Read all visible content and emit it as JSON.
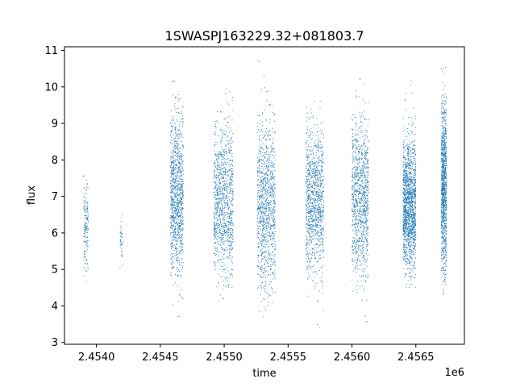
{
  "chart_data": {
    "type": "scatter",
    "title": "1SWASPJ163229.32+081803.7",
    "xlabel": "time",
    "ylabel": "flux",
    "x_offset_label": "1e6",
    "xlim": [
      2453750,
      2456880
    ],
    "ylim": [
      2.95,
      11.1
    ],
    "x_ticks": [
      2454000,
      2454500,
      2455000,
      2455500,
      2456000,
      2456500
    ],
    "x_tick_labels": [
      "2.4540",
      "2.4545",
      "2.4550",
      "2.4555",
      "2.4560",
      "2.4565"
    ],
    "y_ticks": [
      3,
      4,
      5,
      6,
      7,
      8,
      9,
      10,
      11
    ],
    "y_tick_labels": [
      "3",
      "4",
      "5",
      "6",
      "7",
      "8",
      "9",
      "10",
      "11"
    ],
    "grid": false,
    "legend": "none",
    "point_color": "#1f77b4",
    "seasons": [
      {
        "x_start": 2453900,
        "x_end": 2453935,
        "y_center": 6.2,
        "y_min": 4.1,
        "y_max": 7.9,
        "density": "sparse"
      },
      {
        "x_start": 2454185,
        "x_end": 2454205,
        "y_center": 5.8,
        "y_min": 4.8,
        "y_max": 6.9,
        "density": "very-sparse"
      },
      {
        "x_start": 2454580,
        "x_end": 2454680,
        "y_center": 7.0,
        "y_min": 3.6,
        "y_max": 10.6,
        "density": "dense"
      },
      {
        "x_start": 2454920,
        "x_end": 2455070,
        "y_center": 6.9,
        "y_min": 3.3,
        "y_max": 10.0,
        "density": "dense"
      },
      {
        "x_start": 2455260,
        "x_end": 2455400,
        "y_center": 6.8,
        "y_min": 3.5,
        "y_max": 10.8,
        "density": "dense"
      },
      {
        "x_start": 2455640,
        "x_end": 2455780,
        "y_center": 6.9,
        "y_min": 3.3,
        "y_max": 9.8,
        "density": "dense"
      },
      {
        "x_start": 2456000,
        "x_end": 2456130,
        "y_center": 7.0,
        "y_min": 3.4,
        "y_max": 10.4,
        "density": "dense"
      },
      {
        "x_start": 2456400,
        "x_end": 2456500,
        "y_center": 6.8,
        "y_min": 4.5,
        "y_max": 10.2,
        "density": "very-dense"
      },
      {
        "x_start": 2456700,
        "x_end": 2456740,
        "y_center": 7.3,
        "y_min": 3.3,
        "y_max": 10.6,
        "density": "dense"
      }
    ]
  }
}
